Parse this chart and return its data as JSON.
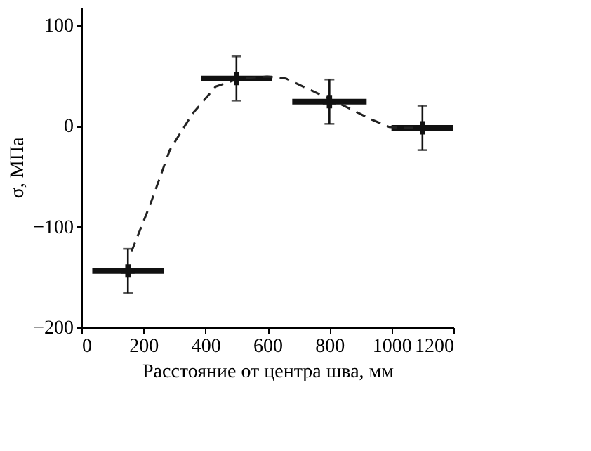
{
  "chart_data": {
    "type": "scatter",
    "xlabel": "Расстояние от центра шва, мм",
    "ylabel": "σ, МПа",
    "xlim": [
      0,
      1200
    ],
    "xticks": [
      0,
      200,
      400,
      600,
      800,
      1000,
      {
        "value": 1200,
        "label": "1200"
      }
    ],
    "ylim": [
      -200,
      118
    ],
    "yticks": [
      -200,
      -100,
      0,
      100
    ],
    "grid": false,
    "series": [
      {
        "color": "#111111",
        "marker": "cross",
        "x": [
          150,
          500,
          800,
          1100
        ],
        "values": [
          -144,
          47,
          24,
          -2
        ],
        "errors": [
          22,
          22,
          22,
          22
        ],
        "xerrors": [
          115,
          115,
          120,
          100
        ]
      },
      {
        "type": "line",
        "color": "#222222",
        "line_style": "dashed",
        "marker": "none",
        "x": [
          161,
          222,
          285,
          358,
          433,
          509,
          599,
          660,
          750,
          840,
          931,
          992,
          1037,
          1100
        ],
        "values": [
          -125,
          -78,
          -24,
          12,
          39,
          47,
          49,
          47,
          34,
          21,
          7,
          -1,
          -2,
          -2
        ]
      }
    ]
  }
}
